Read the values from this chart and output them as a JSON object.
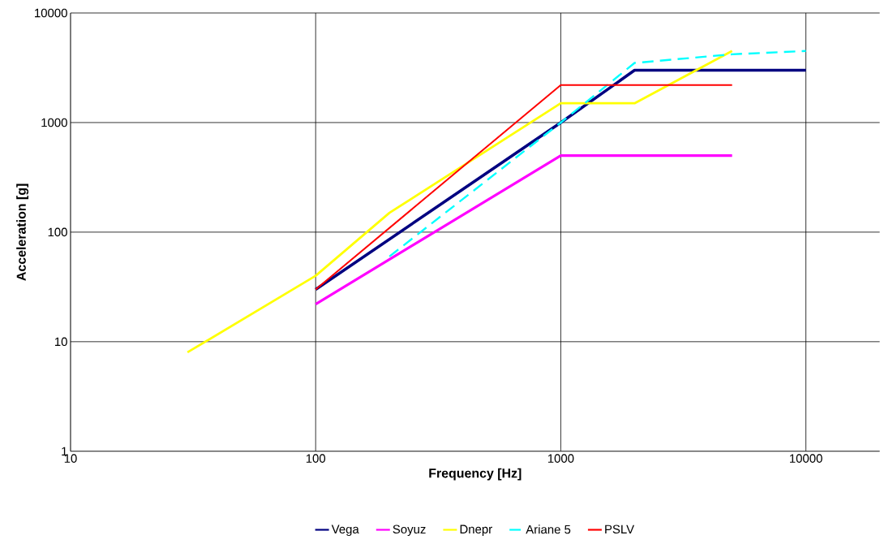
{
  "chart_data": {
    "type": "line",
    "xlabel": "Frequency [Hz]",
    "ylabel": "Acceleration [g]",
    "log": "xy",
    "grid": true,
    "legend": "bottom",
    "xlim": [
      10,
      20000
    ],
    "ylim": [
      1,
      10000
    ],
    "xticks": [
      10,
      100,
      1000,
      10000
    ],
    "yticks": [
      1,
      10,
      100,
      1000,
      10000
    ],
    "series": [
      {
        "name": "Vega",
        "color": "#000080",
        "x": [
          100,
          1000,
          2000,
          10000
        ],
        "values": [
          30,
          1000,
          3000,
          3000
        ]
      },
      {
        "name": "Soyuz",
        "color": "#ff00ff",
        "x": [
          100,
          1000,
          5000
        ],
        "values": [
          22,
          500,
          500
        ]
      },
      {
        "name": "Dnepr",
        "color": "#ffff00",
        "x": [
          30,
          100,
          200,
          1000,
          2000,
          5000
        ],
        "values": [
          8,
          40,
          150,
          1500,
          1500,
          4500
        ]
      },
      {
        "name": "Ariane 5",
        "color": "#00ffff",
        "line_style": "dashed",
        "x": [
          200,
          1000,
          2000,
          5000,
          10000
        ],
        "values": [
          60,
          1000,
          3500,
          4200,
          4500
        ]
      },
      {
        "name": "PSLV",
        "color": "#ff0000",
        "x": [
          100,
          1000,
          5000
        ],
        "values": [
          30,
          2200,
          2200
        ]
      }
    ]
  }
}
